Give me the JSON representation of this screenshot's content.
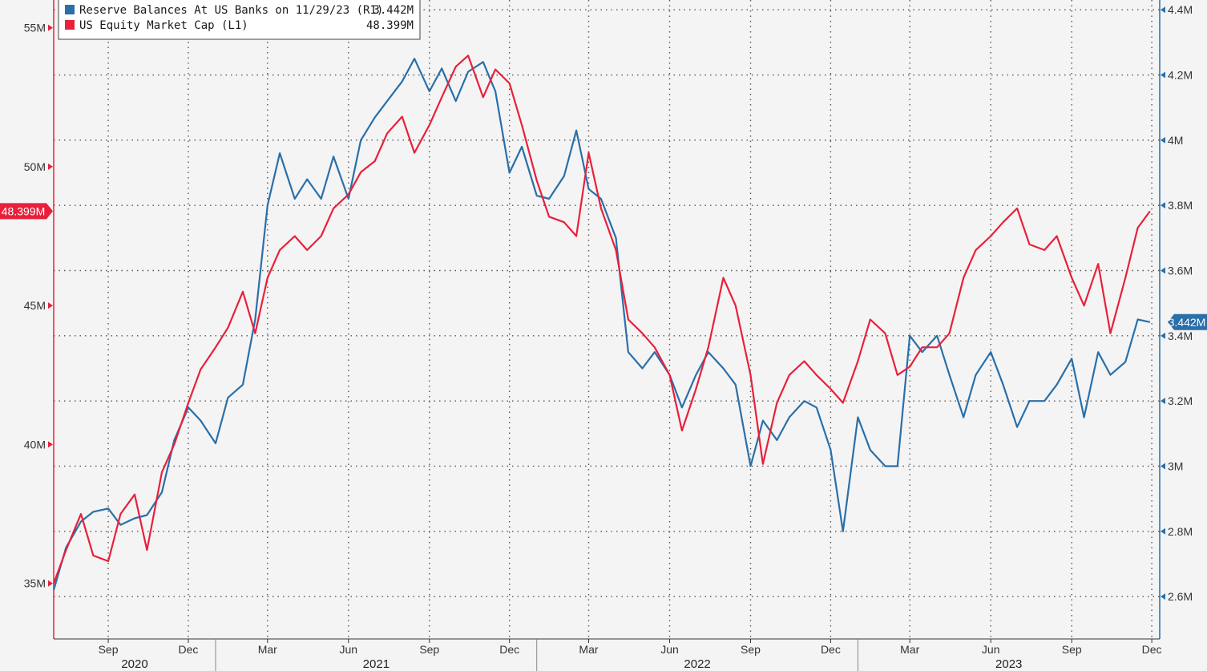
{
  "chart_data": {
    "type": "line",
    "title": "",
    "grid": true,
    "legend_position": "top-left",
    "x_range": [
      "2020-07-01",
      "2023-12-10"
    ],
    "x_month_labels": [
      "Sep",
      "Dec",
      "Mar",
      "Jun",
      "Sep",
      "Dec",
      "Mar",
      "Jun",
      "Sep",
      "Dec",
      "Mar",
      "Jun",
      "Sep",
      "Dec"
    ],
    "x_year_labels": [
      "2020",
      "2021",
      "2022",
      "2023"
    ],
    "left_axis": {
      "unit": "M",
      "ylim": [
        33,
        56
      ],
      "ticks": [
        35,
        40,
        45,
        50,
        55
      ],
      "tick_labels": [
        "35M",
        "40M",
        "45M",
        "50M",
        "55M"
      ],
      "color": "#e8203b"
    },
    "right_axis": {
      "unit": "M",
      "ylim": [
        2.47,
        4.43
      ],
      "ticks": [
        2.6,
        2.8,
        3.0,
        3.2,
        3.4,
        3.6,
        3.8,
        4.0,
        4.2,
        4.4
      ],
      "tick_labels": [
        "2.6M",
        "2.8M",
        "3M",
        "3.2M",
        "3.4M",
        "3.6M",
        "3.8M",
        "4M",
        "4.2M",
        "4.4M"
      ],
      "color": "#2a6fa8"
    },
    "legend": [
      {
        "label": "Reserve Balances At US Banks on 11/29/23 (R1)",
        "value": "3.442M",
        "color": "#2a6fa8"
      },
      {
        "label": "US Equity Market Cap  (L1)",
        "value": "48.399M",
        "color": "#e8203b"
      }
    ],
    "badges": {
      "left": {
        "label": "48.399M",
        "color": "#e8203b"
      },
      "right": {
        "label": "3.442M",
        "color": "#2a6fa8"
      }
    },
    "series": [
      {
        "name": "Reserve Balances At US Banks on 11/29/23 (R1)",
        "axis": "right",
        "color": "#2a6fa8",
        "x": [
          "2020-07-01",
          "2020-07-15",
          "2020-08-01",
          "2020-08-15",
          "2020-09-01",
          "2020-09-15",
          "2020-10-01",
          "2020-10-15",
          "2020-11-01",
          "2020-11-15",
          "2020-12-01",
          "2020-12-15",
          "2021-01-01",
          "2021-01-15",
          "2021-02-01",
          "2021-02-15",
          "2021-03-01",
          "2021-03-15",
          "2021-04-01",
          "2021-04-15",
          "2021-05-01",
          "2021-05-15",
          "2021-06-01",
          "2021-06-15",
          "2021-07-01",
          "2021-07-15",
          "2021-08-01",
          "2021-08-15",
          "2021-09-01",
          "2021-09-15",
          "2021-10-01",
          "2021-10-15",
          "2021-11-01",
          "2021-11-15",
          "2021-12-01",
          "2021-12-15",
          "2022-01-01",
          "2022-01-15",
          "2022-02-01",
          "2022-02-15",
          "2022-03-01",
          "2022-03-15",
          "2022-04-01",
          "2022-04-15",
          "2022-05-01",
          "2022-05-15",
          "2022-06-01",
          "2022-06-15",
          "2022-07-01",
          "2022-07-15",
          "2022-08-01",
          "2022-08-15",
          "2022-09-01",
          "2022-09-15",
          "2022-10-01",
          "2022-10-15",
          "2022-11-01",
          "2022-11-15",
          "2022-12-01",
          "2022-12-15",
          "2023-01-01",
          "2023-01-15",
          "2023-02-01",
          "2023-02-15",
          "2023-03-01",
          "2023-03-15",
          "2023-04-01",
          "2023-04-15",
          "2023-05-01",
          "2023-05-15",
          "2023-06-01",
          "2023-06-15",
          "2023-07-01",
          "2023-07-15",
          "2023-08-01",
          "2023-08-15",
          "2023-09-01",
          "2023-09-15",
          "2023-10-01",
          "2023-10-15",
          "2023-11-01",
          "2023-11-15",
          "2023-11-29"
        ],
        "y": [
          2.62,
          2.75,
          2.83,
          2.86,
          2.87,
          2.82,
          2.84,
          2.85,
          2.92,
          3.08,
          3.18,
          3.14,
          3.07,
          3.21,
          3.25,
          3.45,
          3.8,
          3.96,
          3.82,
          3.88,
          3.82,
          3.95,
          3.82,
          4.0,
          4.07,
          4.12,
          4.18,
          4.25,
          4.15,
          4.22,
          4.12,
          4.21,
          4.24,
          4.15,
          3.9,
          3.98,
          3.83,
          3.82,
          3.89,
          4.03,
          3.85,
          3.82,
          3.7,
          3.35,
          3.3,
          3.35,
          3.28,
          3.18,
          3.28,
          3.35,
          3.3,
          3.25,
          3.0,
          3.14,
          3.08,
          3.15,
          3.2,
          3.18,
          3.05,
          2.8,
          3.15,
          3.05,
          3.0,
          3.0,
          3.4,
          3.35,
          3.4,
          3.28,
          3.15,
          3.28,
          3.35,
          3.25,
          3.12,
          3.2,
          3.2,
          3.25,
          3.33,
          3.15,
          3.35,
          3.28,
          3.32,
          3.45,
          3.442
        ]
      },
      {
        "name": "US Equity Market Cap  (L1)",
        "axis": "left",
        "color": "#e8203b",
        "x": [
          "2020-07-01",
          "2020-07-15",
          "2020-08-01",
          "2020-08-15",
          "2020-09-01",
          "2020-09-15",
          "2020-10-01",
          "2020-10-15",
          "2020-11-01",
          "2020-11-15",
          "2020-12-01",
          "2020-12-15",
          "2021-01-01",
          "2021-01-15",
          "2021-02-01",
          "2021-02-15",
          "2021-03-01",
          "2021-03-15",
          "2021-04-01",
          "2021-04-15",
          "2021-05-01",
          "2021-05-15",
          "2021-06-01",
          "2021-06-15",
          "2021-07-01",
          "2021-07-15",
          "2021-08-01",
          "2021-08-15",
          "2021-09-01",
          "2021-09-15",
          "2021-10-01",
          "2021-10-15",
          "2021-11-01",
          "2021-11-15",
          "2021-12-01",
          "2021-12-15",
          "2022-01-01",
          "2022-01-15",
          "2022-02-01",
          "2022-02-15",
          "2022-03-01",
          "2022-03-15",
          "2022-04-01",
          "2022-04-15",
          "2022-05-01",
          "2022-05-15",
          "2022-06-01",
          "2022-06-15",
          "2022-07-01",
          "2022-07-15",
          "2022-08-01",
          "2022-08-15",
          "2022-09-01",
          "2022-09-15",
          "2022-10-01",
          "2022-10-15",
          "2022-11-01",
          "2022-11-15",
          "2022-12-01",
          "2022-12-15",
          "2023-01-01",
          "2023-01-15",
          "2023-02-01",
          "2023-02-15",
          "2023-03-01",
          "2023-03-15",
          "2023-04-01",
          "2023-04-15",
          "2023-05-01",
          "2023-05-15",
          "2023-06-01",
          "2023-06-15",
          "2023-07-01",
          "2023-07-15",
          "2023-08-01",
          "2023-08-15",
          "2023-09-01",
          "2023-09-15",
          "2023-10-01",
          "2023-10-15",
          "2023-11-01",
          "2023-11-15",
          "2023-11-29"
        ],
        "y": [
          35.0,
          36.2,
          37.5,
          36.0,
          35.8,
          37.5,
          38.2,
          36.2,
          39.0,
          40.0,
          41.5,
          42.7,
          43.5,
          44.2,
          45.5,
          44.0,
          46.0,
          47.0,
          47.5,
          47.0,
          47.5,
          48.5,
          49.0,
          49.8,
          50.2,
          51.2,
          51.8,
          50.5,
          51.5,
          52.5,
          53.6,
          54.0,
          52.5,
          53.5,
          53.0,
          51.5,
          49.5,
          48.2,
          48.0,
          47.5,
          50.5,
          48.5,
          47.0,
          44.5,
          44.0,
          43.5,
          42.5,
          40.5,
          42.0,
          43.5,
          46.0,
          45.0,
          42.5,
          39.3,
          41.5,
          42.5,
          43.0,
          42.5,
          42.0,
          41.5,
          43.0,
          44.5,
          44.0,
          42.5,
          42.8,
          43.5,
          43.5,
          44.0,
          46.0,
          47.0,
          47.5,
          48.0,
          48.5,
          47.2,
          47.0,
          47.5,
          46.0,
          45.0,
          46.5,
          44.0,
          46.0,
          47.8,
          48.399
        ]
      }
    ]
  }
}
